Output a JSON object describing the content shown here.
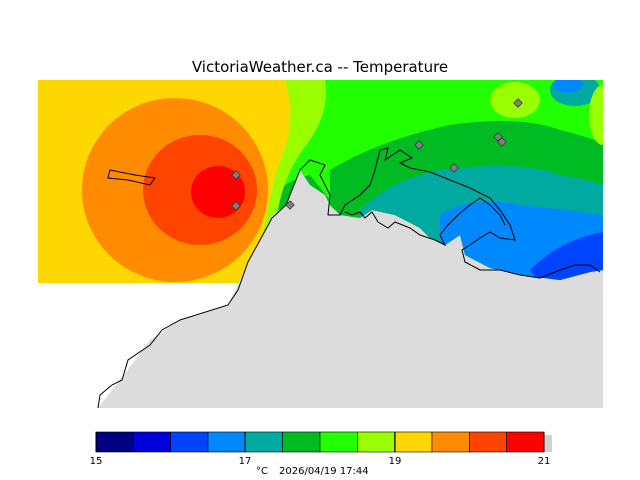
{
  "title": "VictoriaWeather.ca  --  Temperature",
  "legend": {
    "unit": "°C",
    "timestamp": "2026/04/19 17:44",
    "ticks": [
      "15",
      "17",
      "19",
      "21"
    ],
    "colors": [
      "#000080",
      "#0000dd",
      "#0044ff",
      "#0088ff",
      "#00aaa0",
      "#00bb22",
      "#22ff00",
      "#99ff00",
      "#ffd700",
      "#ff8c00",
      "#ff4400",
      "#ff0000"
    ]
  },
  "map": {
    "land_color": "#dcdcdc",
    "outline_color": "#000000",
    "station_marker_color": "#808080"
  }
}
